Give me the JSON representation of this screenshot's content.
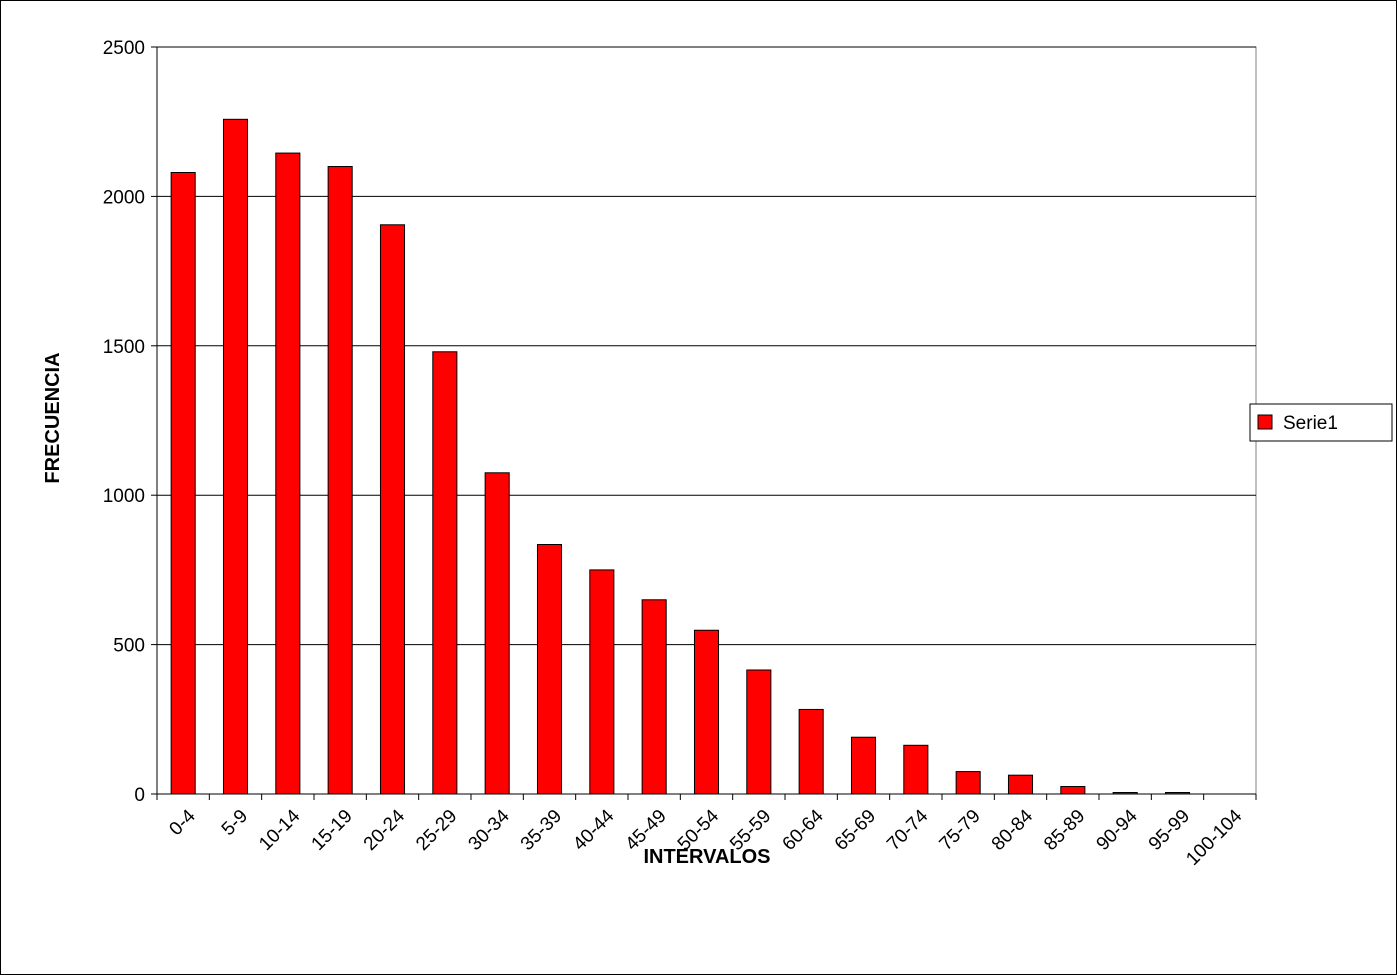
{
  "chart_data": {
    "type": "bar",
    "title": "",
    "xlabel": "INTERVALOS",
    "ylabel": "FRECUENCIA",
    "ylim": [
      0,
      2500
    ],
    "yticks": [
      0,
      500,
      1000,
      1500,
      2000,
      2500
    ],
    "grid": true,
    "legend_position": "right",
    "bar_color": "#ff0000",
    "categories": [
      "0-4",
      "5-9",
      "10-14",
      "15-19",
      "20-24",
      "25-29",
      "30-34",
      "35-39",
      "40-44",
      "45-49",
      "50-54",
      "55-59",
      "60-64",
      "65-69",
      "70-74",
      "75-79",
      "80-84",
      "85-89",
      "90-94",
      "95-99",
      "100-104"
    ],
    "series": [
      {
        "name": "Serie1",
        "values": [
          2080,
          2258,
          2145,
          2100,
          1905,
          1480,
          1075,
          835,
          750,
          650,
          548,
          415,
          283,
          190,
          163,
          75,
          63,
          25,
          5,
          5,
          0
        ]
      }
    ]
  }
}
